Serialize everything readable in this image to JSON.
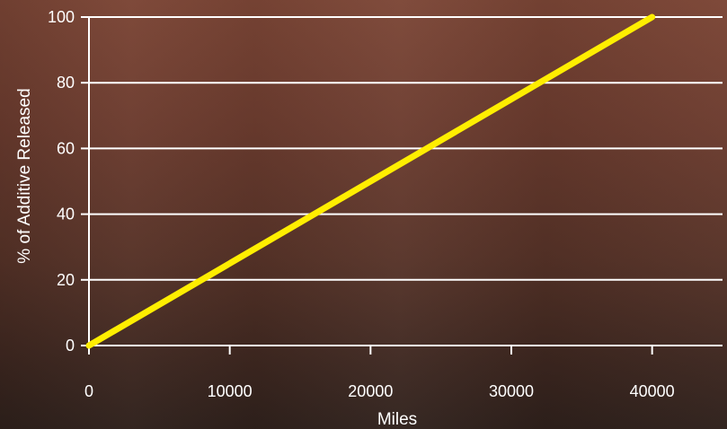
{
  "chart_data": {
    "type": "line",
    "title": "",
    "xlabel": "Miles",
    "ylabel": "% of Additive Released",
    "xlim": [
      0,
      45000
    ],
    "ylim": [
      0,
      100
    ],
    "x_ticks": [
      0,
      10000,
      20000,
      30000,
      40000
    ],
    "y_ticks": [
      0,
      20,
      40,
      60,
      80,
      100
    ],
    "grid": "horizontal",
    "legend": "none",
    "series": [
      {
        "color": "#ffee00",
        "points": [
          {
            "x": 0,
            "y": 0
          },
          {
            "x": 40000,
            "y": 100
          }
        ]
      }
    ]
  },
  "colors": {
    "line": "#ffee00",
    "axes": "#ffffff",
    "text": "#ffffff"
  }
}
